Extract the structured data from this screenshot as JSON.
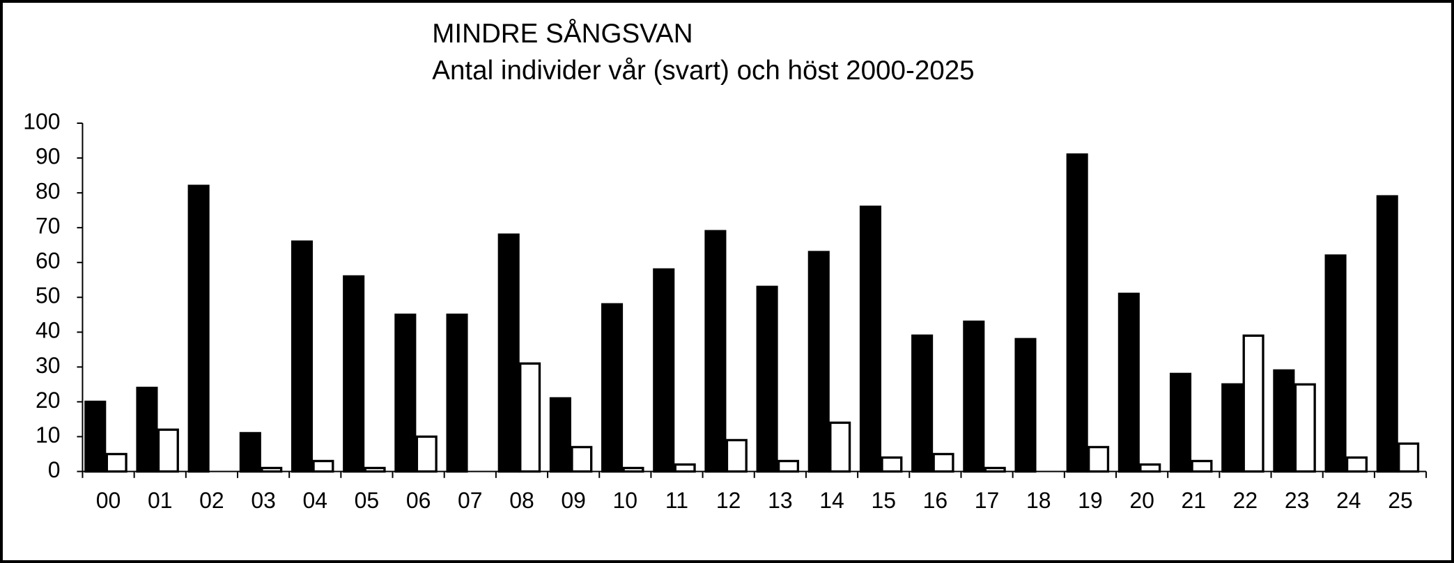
{
  "chart_data": {
    "type": "bar",
    "title": "MINDRE SÅNGSVAN",
    "subtitle": "Antal individer vår (svart) och höst 2000-2025",
    "categories": [
      "00",
      "01",
      "02",
      "03",
      "04",
      "05",
      "06",
      "07",
      "08",
      "09",
      "10",
      "11",
      "12",
      "13",
      "14",
      "15",
      "16",
      "17",
      "18",
      "19",
      "20",
      "21",
      "22",
      "23",
      "24",
      "25"
    ],
    "series": [
      {
        "color": "#000000",
        "values": [
          20,
          24,
          82,
          11,
          66,
          56,
          45,
          45,
          68,
          21,
          48,
          58,
          69,
          53,
          63,
          76,
          39,
          43,
          38,
          91,
          51,
          28,
          25,
          29,
          62,
          79
        ]
      },
      {
        "color": "#ffffff",
        "values": [
          5,
          12,
          0,
          1,
          3,
          1,
          10,
          0,
          31,
          7,
          1,
          2,
          9,
          3,
          14,
          4,
          5,
          1,
          0,
          7,
          2,
          3,
          39,
          25,
          4,
          8
        ]
      }
    ],
    "ylim": [
      0,
      100
    ],
    "yticks": [
      0,
      10,
      20,
      30,
      40,
      50,
      60,
      70,
      80,
      90,
      100
    ],
    "grid": false
  }
}
